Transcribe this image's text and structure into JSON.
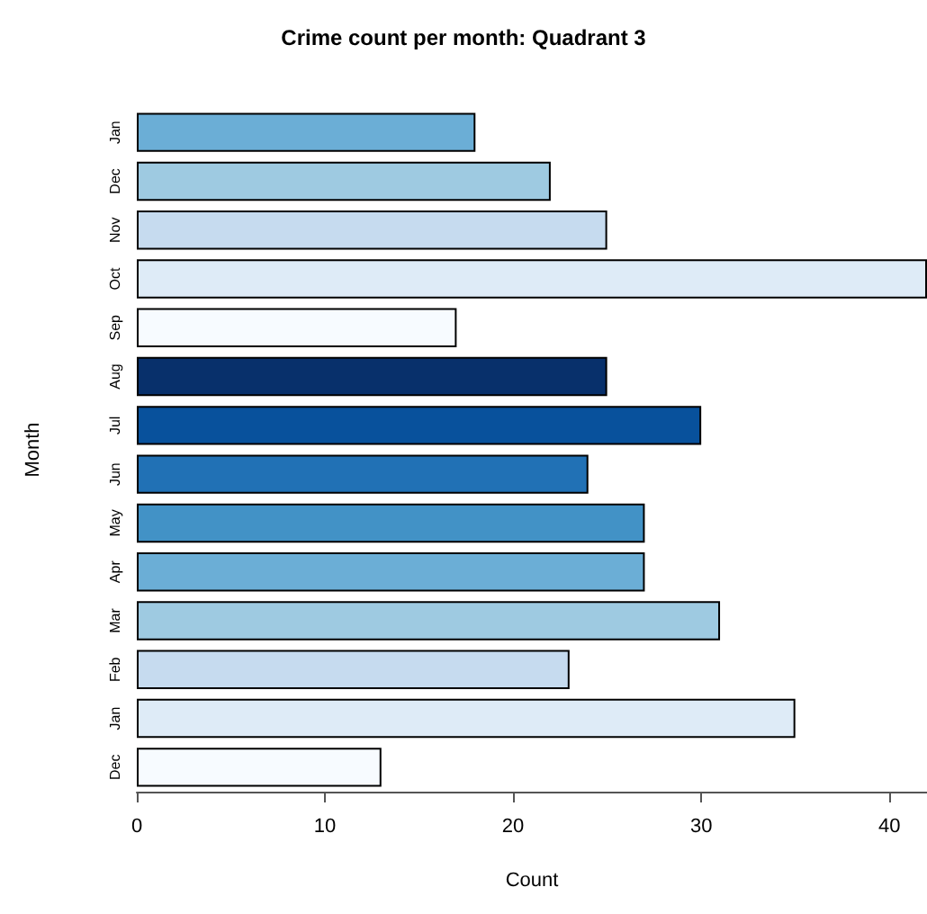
{
  "chart_data": {
    "type": "bar",
    "orientation": "horizontal",
    "title": "Crime count per month: Quadrant 3",
    "xlabel": "Count",
    "ylabel": "Month",
    "categories": [
      "Jan",
      "Dec",
      "Nov",
      "Oct",
      "Sep",
      "Aug",
      "Jul",
      "Jun",
      "May",
      "Apr",
      "Mar",
      "Feb",
      "Jan",
      "Dec"
    ],
    "values": [
      18,
      22,
      25,
      42,
      17,
      25,
      30,
      24,
      27,
      27,
      31,
      23,
      35,
      13
    ],
    "colors": [
      "#6baed6",
      "#9ecae1",
      "#c6dbef",
      "#deebf7",
      "#f7fbff",
      "#08306b",
      "#08519c",
      "#2171b5",
      "#4292c6",
      "#6baed6",
      "#9ecae1",
      "#c6dbef",
      "#deebf7",
      "#f7fbff"
    ],
    "xlim": [
      0,
      42
    ],
    "xticks": [
      0,
      10,
      20,
      30,
      40
    ]
  }
}
